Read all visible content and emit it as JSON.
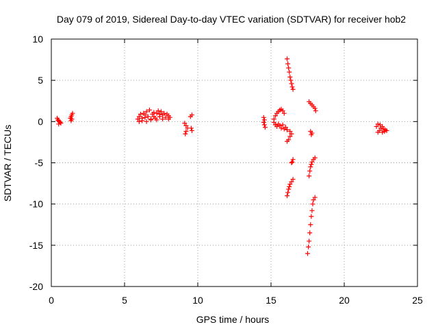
{
  "chart_data": {
    "type": "scatter",
    "title": "Day 079 of 2019, Sidereal Day-to-day VTEC variation (SDTVAR) for receiver hob2",
    "xlabel": "GPS time / hours",
    "ylabel": "SDTVAR / TECUs",
    "xlim": [
      0,
      25
    ],
    "ylim": [
      -20,
      10
    ],
    "xticks": [
      "0",
      "5",
      "10",
      "15",
      "20",
      "25"
    ],
    "yticks": [
      "10",
      "5",
      "0",
      "-5",
      "-10",
      "-15",
      "-20"
    ],
    "grid": true,
    "legend": "none",
    "marker": "plus",
    "color": "#ff0000",
    "series": [
      {
        "points": [
          [
            0.4,
            0.4
          ],
          [
            0.45,
            0.2
          ],
          [
            0.5,
            0.1
          ],
          [
            0.55,
            0.0
          ],
          [
            0.6,
            -0.1
          ],
          [
            0.65,
            -0.2
          ],
          [
            0.5,
            -0.3
          ],
          [
            1.3,
            0.4
          ],
          [
            1.35,
            0.6
          ],
          [
            1.4,
            0.8
          ],
          [
            1.45,
            1.0
          ],
          [
            1.4,
            0.3
          ],
          [
            1.35,
            0.1
          ],
          [
            5.9,
            0.3
          ],
          [
            6.0,
            0.6
          ],
          [
            6.1,
            0.9
          ],
          [
            6.2,
            0.4
          ],
          [
            6.3,
            1.0
          ],
          [
            6.4,
            0.5
          ],
          [
            6.5,
            1.2
          ],
          [
            6.6,
            0.6
          ],
          [
            6.7,
            1.4
          ],
          [
            6.8,
            0.2
          ],
          [
            6.9,
            0.9
          ],
          [
            7.0,
            1.1
          ],
          [
            7.1,
            0.4
          ],
          [
            7.2,
            1.0
          ],
          [
            7.3,
            1.3
          ],
          [
            7.4,
            0.6
          ],
          [
            7.5,
            1.2
          ],
          [
            7.6,
            0.8
          ],
          [
            7.7,
            1.0
          ],
          [
            7.8,
            0.5
          ],
          [
            7.9,
            0.9
          ],
          [
            8.0,
            0.7
          ],
          [
            8.1,
            0.5
          ],
          [
            6.2,
            0.1
          ],
          [
            6.5,
            0.0
          ],
          [
            6.8,
            0.3
          ],
          [
            7.2,
            0.2
          ],
          [
            7.6,
            0.3
          ],
          [
            8.0,
            0.3
          ],
          [
            6.0,
            0.0
          ],
          [
            6.4,
            0.8
          ],
          [
            7.0,
            0.6
          ],
          [
            7.4,
            0.9
          ],
          [
            9.1,
            -0.2
          ],
          [
            9.2,
            -0.5
          ],
          [
            9.3,
            -0.8
          ],
          [
            9.2,
            -1.2
          ],
          [
            9.15,
            -1.5
          ],
          [
            9.5,
            0.6
          ],
          [
            9.6,
            0.8
          ],
          [
            9.55,
            -0.8
          ],
          [
            9.6,
            -1.1
          ],
          [
            14.5,
            0.5
          ],
          [
            14.55,
            0.2
          ],
          [
            14.5,
            -0.1
          ],
          [
            14.55,
            -0.4
          ],
          [
            14.6,
            -0.7
          ],
          [
            15.2,
            0.3
          ],
          [
            15.3,
            0.7
          ],
          [
            15.4,
            1.0
          ],
          [
            15.5,
            1.2
          ],
          [
            15.6,
            1.4
          ],
          [
            15.7,
            1.5
          ],
          [
            15.8,
            1.3
          ],
          [
            15.9,
            1.0
          ],
          [
            15.2,
            -0.1
          ],
          [
            15.3,
            -0.4
          ],
          [
            15.4,
            -0.6
          ],
          [
            15.5,
            -0.3
          ],
          [
            15.6,
            -0.5
          ],
          [
            15.7,
            -0.8
          ],
          [
            15.8,
            -0.4
          ],
          [
            15.9,
            -0.9
          ],
          [
            16.0,
            -0.7
          ],
          [
            16.1,
            -1.0
          ],
          [
            16.3,
            -1.2
          ],
          [
            16.4,
            -1.5
          ],
          [
            16.3,
            -1.8
          ],
          [
            16.2,
            -2.2
          ],
          [
            16.1,
            -2.4
          ],
          [
            16.1,
            7.6
          ],
          [
            16.15,
            7.0
          ],
          [
            16.2,
            6.5
          ],
          [
            16.25,
            6.0
          ],
          [
            16.3,
            5.4
          ],
          [
            16.35,
            5.0
          ],
          [
            16.4,
            4.6
          ],
          [
            16.45,
            4.2
          ],
          [
            16.5,
            3.9
          ],
          [
            16.5,
            -4.6
          ],
          [
            16.45,
            -4.9
          ],
          [
            16.4,
            -5.0
          ],
          [
            16.1,
            -9.0
          ],
          [
            16.15,
            -8.6
          ],
          [
            16.2,
            -8.2
          ],
          [
            16.25,
            -7.9
          ],
          [
            16.3,
            -7.6
          ],
          [
            16.4,
            -7.3
          ],
          [
            16.5,
            -7.0
          ],
          [
            17.7,
            -1.2
          ],
          [
            17.8,
            -1.4
          ],
          [
            17.75,
            -1.6
          ],
          [
            17.6,
            2.4
          ],
          [
            17.7,
            2.2
          ],
          [
            17.8,
            2.0
          ],
          [
            17.9,
            1.8
          ],
          [
            18.0,
            1.6
          ],
          [
            18.05,
            1.3
          ],
          [
            17.6,
            -6.6
          ],
          [
            17.65,
            -6.0
          ],
          [
            17.7,
            -5.5
          ],
          [
            17.75,
            -5.2
          ],
          [
            17.8,
            -4.9
          ],
          [
            17.9,
            -4.6
          ],
          [
            18.0,
            -4.4
          ],
          [
            17.5,
            -16.0
          ],
          [
            17.55,
            -15.2
          ],
          [
            17.6,
            -14.5
          ],
          [
            17.65,
            -13.5
          ],
          [
            17.7,
            -12.5
          ],
          [
            17.75,
            -11.5
          ],
          [
            17.8,
            -10.8
          ],
          [
            17.85,
            -10.0
          ],
          [
            17.9,
            -9.5
          ],
          [
            18.0,
            -9.2
          ],
          [
            22.2,
            -0.6
          ],
          [
            22.3,
            -0.3
          ],
          [
            22.4,
            -1.1
          ],
          [
            22.5,
            -0.8
          ],
          [
            22.6,
            -1.3
          ],
          [
            22.7,
            -0.9
          ],
          [
            22.8,
            -1.0
          ],
          [
            22.9,
            -1.1
          ],
          [
            22.3,
            -1.3
          ],
          [
            22.6,
            -0.6
          ],
          [
            22.45,
            -0.4
          ],
          [
            22.75,
            -1.2
          ]
        ]
      }
    ]
  }
}
